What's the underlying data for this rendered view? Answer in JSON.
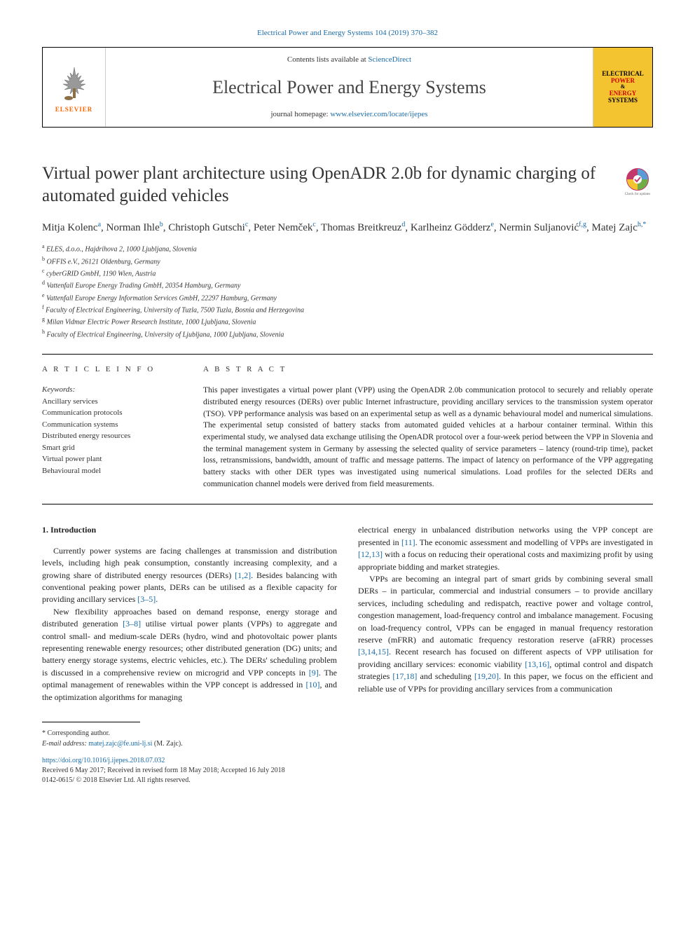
{
  "top_link": "Electrical Power and Energy Systems 104 (2019) 370–382",
  "header": {
    "contents_prefix": "Contents lists available at ",
    "contents_link": "ScienceDirect",
    "journal_name": "Electrical Power and Energy Systems",
    "homepage_prefix": "journal homepage: ",
    "homepage_url": "www.elsevier.com/locate/ijepes",
    "elsevier_label": "ELSEVIER",
    "cover": {
      "l1": "ELECTRICAL",
      "l2": "POWER",
      "l3": "&",
      "l4": "ENERGY",
      "l5": "SYSTEMS"
    }
  },
  "title": "Virtual power plant architecture using OpenADR 2.0b for dynamic charging of automated guided vehicles",
  "updates_label": "Check for updates",
  "authors_html": "Mitja Kolenc<sup>a</sup>, Norman Ihle<sup>b</sup>, Christoph Gutschi<sup>c</sup>, Peter Nemček<sup>c</sup>, Thomas Breitkreuz<sup>d</sup>, Karlheinz Gödderz<sup>e</sup>, Nermin Suljanović<sup>f,g</sup>, Matej Zajc<sup>h,*</sup>",
  "affiliations": [
    "a ELES, d.o.o., Hajdrihova 2, 1000 Ljubljana, Slovenia",
    "b OFFIS e.V., 26121 Oldenburg, Germany",
    "c cyberGRID GmbH, 1190 Wien, Austria",
    "d Vattenfall Europe Energy Trading GmbH, 20354 Hamburg, Germany",
    "e Vattenfall Europe Energy Information Services GmbH, 22297 Hamburg, Germany",
    "f Faculty of Electrical Engineering, University of Tuzla, 7500 Tuzla, Bosnia and Herzegovina",
    "g Milan Vidmar Electric Power Research Institute, 1000 Ljubljana, Slovenia",
    "h Faculty of Electrical Engineering, University of Ljubljana, 1000 Ljubljana, Slovenia"
  ],
  "info_heading": "A R T I C L E   I N F O",
  "keywords_label": "Keywords:",
  "keywords": [
    "Ancillary services",
    "Communication protocols",
    "Communication systems",
    "Distributed energy resources",
    "Smart grid",
    "Virtual power plant",
    "Behavioural model"
  ],
  "abstract_heading": "A B S T R A C T",
  "abstract": "This paper investigates a virtual power plant (VPP) using the OpenADR 2.0b communication protocol to securely and reliably operate distributed energy resources (DERs) over public Internet infrastructure, providing ancillary services to the transmission system operator (TSO). VPP performance analysis was based on an experimental setup as well as a dynamic behavioural model and numerical simulations. The experimental setup consisted of battery stacks from automated guided vehicles at a harbour container terminal. Within this experimental study, we analysed data exchange utilising the OpenADR protocol over a four-week period between the VPP in Slovenia and the terminal management system in Germany by assessing the selected quality of service parameters – latency (round-trip time), packet loss, retransmissions, bandwidth, amount of traffic and message patterns. The impact of latency on performance of the VPP aggregating battery stacks with other DER types was investigated using numerical simulations. Load profiles for the selected DERs and communication channel models were derived from field measurements.",
  "section1_heading": "1. Introduction",
  "col1": {
    "p1_a": "Currently power systems are facing challenges at transmission and distribution levels, including high peak consumption, constantly increasing complexity, and a growing share of distributed energy resources (DERs) ",
    "p1_ref1": "[1,2]",
    "p1_b": ". Besides balancing with conventional peaking power plants, DERs can be utilised as a flexible capacity for providing ancillary services ",
    "p1_ref2": "[3–5]",
    "p1_c": ".",
    "p2_a": "New flexibility approaches based on demand response, energy storage and distributed generation ",
    "p2_ref1": "[3–8]",
    "p2_b": " utilise virtual power plants (VPPs) to aggregate and control small- and medium-scale DERs (hydro, wind and photovoltaic power plants representing renewable energy resources; other distributed generation (DG) units; and battery energy storage systems, electric vehicles, etc.). The DERs' scheduling problem is discussed in a comprehensive review on microgrid and VPP concepts in ",
    "p2_ref2": "[9]",
    "p2_c": ". The optimal management of renewables within the VPP concept is addressed in ",
    "p2_ref3": "[10]",
    "p2_d": ", and the optimization algorithms for managing"
  },
  "col2": {
    "p1_a": "electrical energy in unbalanced distribution networks using the VPP concept are presented in ",
    "p1_ref1": "[11]",
    "p1_b": ". The economic assessment and modelling of VPPs are investigated in ",
    "p1_ref2": "[12,13]",
    "p1_c": " with a focus on reducing their operational costs and maximizing profit by using appropriate bidding and market strategies.",
    "p2_a": "VPPs are becoming an integral part of smart grids by combining several small DERs – in particular, commercial and industrial consumers – to provide ancillary services, including scheduling and redispatch, reactive power and voltage control, congestion management, load-frequency control and imbalance management. Focusing on load-frequency control, VPPs can be engaged in manual frequency restoration reserve (mFRR) and automatic frequency restoration reserve (aFRR) processes ",
    "p2_ref1": "[3,14,15]",
    "p2_b": ". Recent research has focused on different aspects of VPP utilisation for providing ancillary services: economic viability ",
    "p2_ref2": "[13,16]",
    "p2_c": ", optimal control and dispatch strategies ",
    "p2_ref3": "[17,18]",
    "p2_d": " and scheduling ",
    "p2_ref4": "[19,20]",
    "p2_e": ". In this paper, we focus on the efficient and reliable use of VPPs for providing ancillary services from a communication"
  },
  "corr": {
    "star": "* Corresponding author.",
    "email_label": "E-mail address: ",
    "email": "matej.zajc@fe.uni-lj.si",
    "email_suffix": " (M. Zajc)."
  },
  "doi": "https://doi.org/10.1016/j.ijepes.2018.07.032",
  "dates": "Received 6 May 2017; Received in revised form 18 May 2018; Accepted 16 July 2018",
  "copyright": "0142-0615/ © 2018 Elsevier Ltd. All rights reserved.",
  "colors": {
    "link": "#1a6ba8",
    "elsevier_orange": "#ff6600",
    "cover_bg": "#f4c430",
    "cover_red": "#c00000"
  }
}
